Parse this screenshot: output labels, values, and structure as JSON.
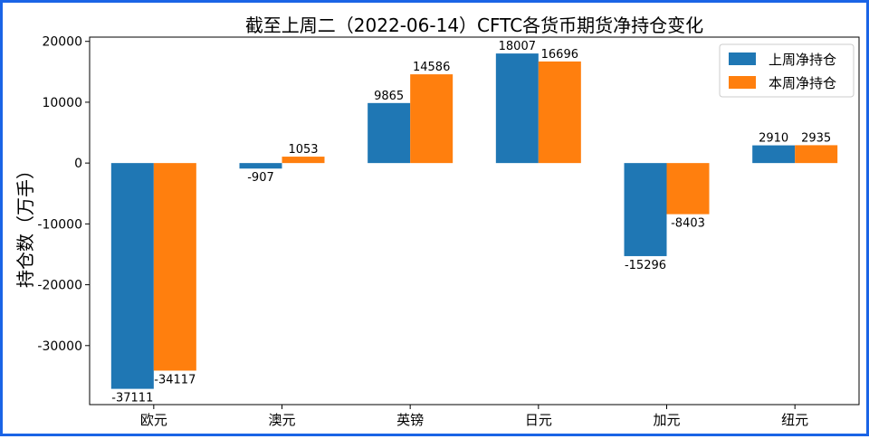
{
  "chart_data": {
    "type": "bar",
    "title": "截至上周二（2022-06-14）CFTC各货币期货净持仓变化",
    "xlabel": "",
    "ylabel": "持仓数（万手）",
    "categories": [
      "欧元",
      "澳元",
      "英镑",
      "日元",
      "加元",
      "纽元"
    ],
    "series": [
      {
        "name": "上周净持仓",
        "color": "#1f77b4",
        "values": [
          -37111,
          -907,
          9865,
          18007,
          -15296,
          2910
        ]
      },
      {
        "name": "本周净持仓",
        "color": "#ff7f0e",
        "values": [
          -34117,
          1053,
          14586,
          16696,
          -8403,
          2935
        ]
      }
    ],
    "ylim": [
      -39700,
      20700
    ],
    "yticks": [
      -30000,
      -20000,
      -10000,
      0,
      10000,
      20000
    ],
    "legend": "top-right",
    "grid": false
  }
}
